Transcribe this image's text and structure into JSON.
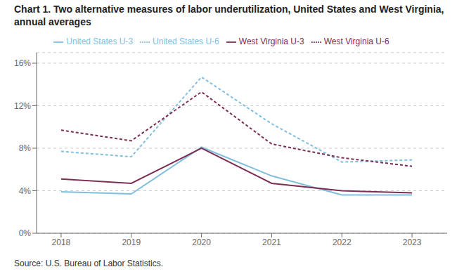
{
  "chart_data": {
    "type": "line",
    "title": "Chart 1. Two alternative measures of labor underutilization, United States and West Virginia, annual averages",
    "annotations": [
      "Source: U.S. Bureau of Labor Statistics."
    ],
    "x": [
      2018,
      2019,
      2020,
      2021,
      2022,
      2023
    ],
    "xlim": [
      2017.65,
      2023.5
    ],
    "xticks": [
      2018,
      2019,
      2020,
      2021,
      2022,
      2023
    ],
    "ylim": [
      0,
      17
    ],
    "yticks": [
      {
        "value": 0,
        "label": "0%"
      },
      {
        "value": 4,
        "label": "4%"
      },
      {
        "value": 8,
        "label": "8%"
      },
      {
        "value": 12,
        "label": "12%"
      },
      {
        "value": 16,
        "label": "16%"
      }
    ],
    "grid": true,
    "legend": "top",
    "series": [
      {
        "name": "United States U-3",
        "color": "#7FBFDE",
        "line_style": "solid",
        "values": [
          3.9,
          3.7,
          8.1,
          5.4,
          3.6,
          3.6
        ]
      },
      {
        "name": "United States U-6",
        "color": "#7FBFDE",
        "line_style": "dashed",
        "values": [
          7.7,
          7.2,
          14.7,
          10.3,
          6.7,
          6.9
        ]
      },
      {
        "name": "West Virginia U-3",
        "color": "#7B2D52",
        "line_style": "solid",
        "values": [
          5.1,
          4.7,
          8.0,
          4.7,
          4.0,
          3.8
        ]
      },
      {
        "name": "West Virginia U-6",
        "color": "#7B2D52",
        "line_style": "dashed",
        "values": [
          9.7,
          8.7,
          13.3,
          8.4,
          7.1,
          6.3
        ]
      }
    ]
  }
}
